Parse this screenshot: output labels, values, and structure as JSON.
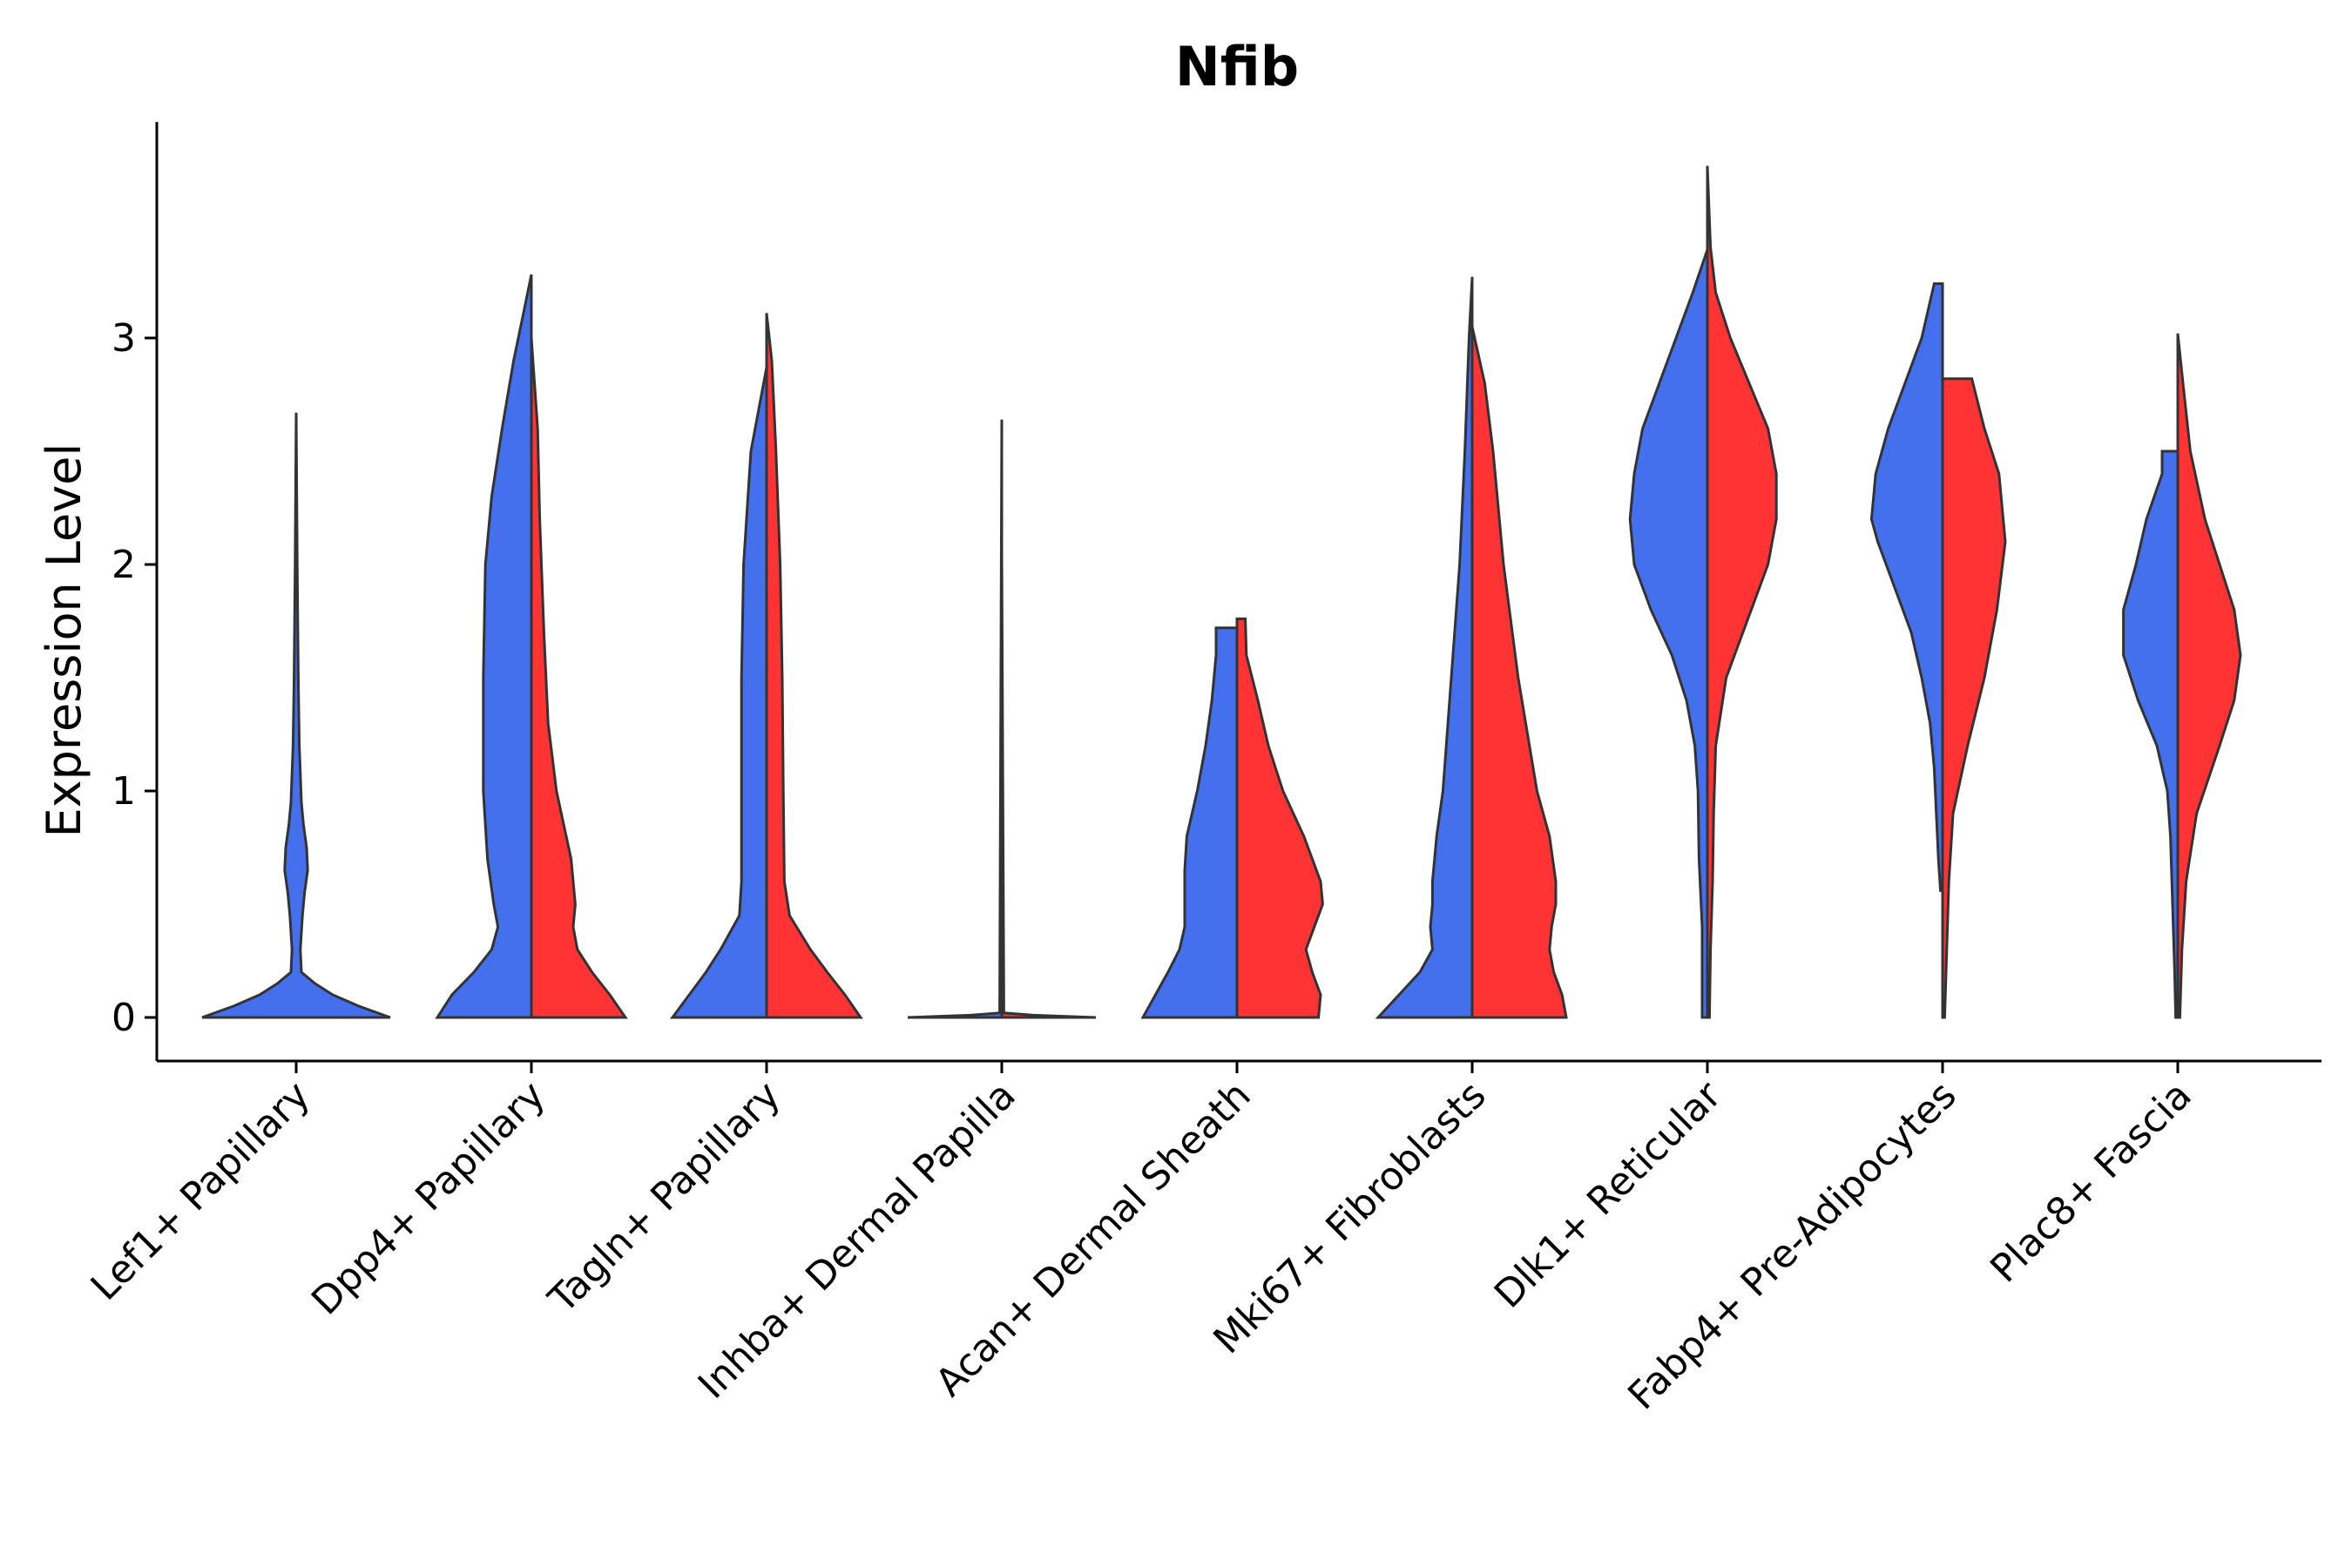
{
  "chart_data": {
    "type": "violin",
    "title": "Nfib",
    "xlabel": "",
    "ylabel": "Expression Level",
    "ylim": [
      -0.19,
      3.95
    ],
    "yticks": [
      0,
      1,
      2,
      3
    ],
    "categories": [
      "Lef1+ Papillary",
      "Dpp4+ Papillary",
      "Tagln+ Papillary",
      "Inhba+ Dermal Papilla",
      "Acan+ Dermal Sheath",
      "Mki67+ Fibroblasts",
      "Dlk1+ Reticular",
      "Fabp4+ Pre-Adipocytes",
      "Plac8+ Fascia"
    ],
    "split_colors": [
      "#4470ee",
      "#ff3333"
    ],
    "violins": [
      {
        "category": 0,
        "group": "single",
        "color": "#4470ee",
        "ymin": 0,
        "ymax": 2.67,
        "profile": [
          [
            0,
            0.9
          ],
          [
            0.05,
            0.6
          ],
          [
            0.1,
            0.35
          ],
          [
            0.15,
            0.18
          ],
          [
            0.2,
            0.05
          ],
          [
            0.3,
            0.04
          ],
          [
            0.45,
            0.06
          ],
          [
            0.55,
            0.08
          ],
          [
            0.65,
            0.11
          ],
          [
            0.75,
            0.1
          ],
          [
            0.85,
            0.07
          ],
          [
            0.95,
            0.05
          ],
          [
            1.2,
            0.03
          ],
          [
            1.5,
            0.02
          ],
          [
            2.0,
            0.01
          ],
          [
            2.67,
            0
          ]
        ]
      },
      {
        "category": 1,
        "group": "left",
        "color": "#4470ee",
        "ymin": 0,
        "ymax": 3.28,
        "profile": [
          [
            0,
            0.9
          ],
          [
            0.1,
            0.76
          ],
          [
            0.2,
            0.55
          ],
          [
            0.3,
            0.38
          ],
          [
            0.4,
            0.32
          ],
          [
            0.5,
            0.36
          ],
          [
            0.7,
            0.42
          ],
          [
            1.0,
            0.46
          ],
          [
            1.5,
            0.46
          ],
          [
            2.0,
            0.44
          ],
          [
            2.3,
            0.38
          ],
          [
            2.6,
            0.28
          ],
          [
            2.9,
            0.17
          ],
          [
            3.1,
            0.08
          ],
          [
            3.28,
            0
          ]
        ]
      },
      {
        "category": 1,
        "group": "right",
        "color": "#ff3333",
        "ymin": 0,
        "ymax": 3.0,
        "profile": [
          [
            0,
            0.9
          ],
          [
            0.1,
            0.75
          ],
          [
            0.2,
            0.58
          ],
          [
            0.3,
            0.44
          ],
          [
            0.4,
            0.4
          ],
          [
            0.5,
            0.42
          ],
          [
            0.7,
            0.38
          ],
          [
            1.0,
            0.24
          ],
          [
            1.3,
            0.16
          ],
          [
            1.7,
            0.12
          ],
          [
            2.2,
            0.08
          ],
          [
            2.6,
            0.06
          ],
          [
            3.0,
            0
          ]
        ]
      },
      {
        "category": 2,
        "group": "left",
        "color": "#4470ee",
        "ymin": 0,
        "ymax": 2.87,
        "profile": [
          [
            0,
            0.9
          ],
          [
            0.1,
            0.74
          ],
          [
            0.2,
            0.58
          ],
          [
            0.3,
            0.44
          ],
          [
            0.45,
            0.26
          ],
          [
            0.6,
            0.24
          ],
          [
            1.0,
            0.24
          ],
          [
            1.5,
            0.24
          ],
          [
            2.0,
            0.22
          ],
          [
            2.5,
            0.15
          ],
          [
            2.87,
            0
          ]
        ]
      },
      {
        "category": 2,
        "group": "right",
        "color": "#ff3333",
        "ymin": 0,
        "ymax": 3.11,
        "profile": [
          [
            0,
            0.9
          ],
          [
            0.1,
            0.75
          ],
          [
            0.2,
            0.58
          ],
          [
            0.3,
            0.42
          ],
          [
            0.45,
            0.22
          ],
          [
            0.6,
            0.17
          ],
          [
            1.0,
            0.16
          ],
          [
            1.5,
            0.15
          ],
          [
            2.0,
            0.13
          ],
          [
            2.5,
            0.09
          ],
          [
            2.9,
            0.05
          ],
          [
            3.11,
            0
          ]
        ]
      },
      {
        "category": 3,
        "group": "left",
        "color": "#4470ee",
        "ymin": 0,
        "ymax": 2.64,
        "profile": [
          [
            0,
            0.9
          ],
          [
            0.01,
            0.3
          ],
          [
            0.02,
            0.02
          ],
          [
            2.64,
            0
          ]
        ]
      },
      {
        "category": 3,
        "group": "right",
        "color": "#ff3333",
        "ymin": 0,
        "ymax": 2.05,
        "profile": [
          [
            0,
            0.9
          ],
          [
            0.01,
            0.3
          ],
          [
            0.02,
            0.02
          ],
          [
            2.05,
            0
          ]
        ]
      },
      {
        "category": 4,
        "group": "left",
        "color": "#4470ee",
        "ymin": 0,
        "ymax": 1.72,
        "profile": [
          [
            0,
            0.9
          ],
          [
            0.1,
            0.78
          ],
          [
            0.2,
            0.66
          ],
          [
            0.3,
            0.55
          ],
          [
            0.4,
            0.5
          ],
          [
            0.5,
            0.5
          ],
          [
            0.65,
            0.5
          ],
          [
            0.8,
            0.48
          ],
          [
            1.0,
            0.38
          ],
          [
            1.2,
            0.3
          ],
          [
            1.4,
            0.24
          ],
          [
            1.6,
            0.2
          ],
          [
            1.72,
            0.2
          ]
        ]
      },
      {
        "category": 4,
        "group": "right",
        "color": "#ff3333",
        "ymin": 0,
        "ymax": 1.76,
        "profile": [
          [
            0,
            0.78
          ],
          [
            0.1,
            0.8
          ],
          [
            0.2,
            0.72
          ],
          [
            0.3,
            0.66
          ],
          [
            0.4,
            0.74
          ],
          [
            0.5,
            0.82
          ],
          [
            0.6,
            0.8
          ],
          [
            0.8,
            0.64
          ],
          [
            1.0,
            0.44
          ],
          [
            1.2,
            0.3
          ],
          [
            1.4,
            0.2
          ],
          [
            1.6,
            0.09
          ],
          [
            1.76,
            0.08
          ]
        ]
      },
      {
        "category": 5,
        "group": "left",
        "color": "#4470ee",
        "ymin": 0,
        "ymax": 3.27,
        "profile": [
          [
            0,
            0.9
          ],
          [
            0.1,
            0.7
          ],
          [
            0.2,
            0.5
          ],
          [
            0.3,
            0.38
          ],
          [
            0.4,
            0.4
          ],
          [
            0.5,
            0.38
          ],
          [
            0.6,
            0.38
          ],
          [
            0.8,
            0.34
          ],
          [
            1.0,
            0.28
          ],
          [
            1.5,
            0.2
          ],
          [
            2.0,
            0.12
          ],
          [
            2.5,
            0.07
          ],
          [
            3.0,
            0.03
          ],
          [
            3.27,
            0
          ]
        ]
      },
      {
        "category": 5,
        "group": "right",
        "color": "#ff3333",
        "ymin": 0,
        "ymax": 3.05,
        "profile": [
          [
            0,
            0.9
          ],
          [
            0.1,
            0.86
          ],
          [
            0.2,
            0.78
          ],
          [
            0.3,
            0.74
          ],
          [
            0.4,
            0.76
          ],
          [
            0.5,
            0.8
          ],
          [
            0.6,
            0.8
          ],
          [
            0.8,
            0.74
          ],
          [
            1.0,
            0.62
          ],
          [
            1.5,
            0.44
          ],
          [
            2.0,
            0.3
          ],
          [
            2.5,
            0.2
          ],
          [
            2.8,
            0.12
          ],
          [
            3.05,
            0
          ]
        ]
      },
      {
        "category": 6,
        "group": "left",
        "color": "#4470ee",
        "ymin": 0,
        "ymax": 3.39,
        "profile": [
          [
            0,
            0.05
          ],
          [
            0.2,
            0.05
          ],
          [
            0.4,
            0.05
          ],
          [
            0.7,
            0.08
          ],
          [
            1.0,
            0.09
          ],
          [
            1.2,
            0.12
          ],
          [
            1.4,
            0.2
          ],
          [
            1.6,
            0.34
          ],
          [
            1.8,
            0.54
          ],
          [
            2.0,
            0.7
          ],
          [
            2.2,
            0.74
          ],
          [
            2.4,
            0.7
          ],
          [
            2.6,
            0.62
          ],
          [
            2.8,
            0.46
          ],
          [
            3.0,
            0.3
          ],
          [
            3.2,
            0.14
          ],
          [
            3.39,
            0
          ]
        ]
      },
      {
        "category": 6,
        "group": "right",
        "color": "#ff3333",
        "ymin": 0,
        "ymax": 3.76,
        "profile": [
          [
            0,
            0.02
          ],
          [
            0.3,
            0.03
          ],
          [
            0.6,
            0.05
          ],
          [
            0.9,
            0.06
          ],
          [
            1.2,
            0.08
          ],
          [
            1.5,
            0.18
          ],
          [
            1.8,
            0.42
          ],
          [
            2.0,
            0.58
          ],
          [
            2.2,
            0.66
          ],
          [
            2.4,
            0.66
          ],
          [
            2.6,
            0.58
          ],
          [
            2.8,
            0.4
          ],
          [
            3.0,
            0.22
          ],
          [
            3.2,
            0.08
          ],
          [
            3.4,
            0.03
          ],
          [
            3.76,
            0
          ]
        ]
      },
      {
        "category": 7,
        "group": "left",
        "color": "#4470ee",
        "ymin": 0.56,
        "ymax": 3.24,
        "profile": [
          [
            0.56,
            0.02
          ],
          [
            0.7,
            0.04
          ],
          [
            0.9,
            0.06
          ],
          [
            1.1,
            0.08
          ],
          [
            1.3,
            0.12
          ],
          [
            1.5,
            0.2
          ],
          [
            1.7,
            0.3
          ],
          [
            1.9,
            0.46
          ],
          [
            2.1,
            0.62
          ],
          [
            2.2,
            0.68
          ],
          [
            2.4,
            0.64
          ],
          [
            2.6,
            0.52
          ],
          [
            2.8,
            0.36
          ],
          [
            3.0,
            0.2
          ],
          [
            3.24,
            0.08
          ]
        ]
      },
      {
        "category": 7,
        "group": "right",
        "color": "#ff3333",
        "ymin": 0,
        "ymax": 2.82,
        "profile": [
          [
            0,
            0.02
          ],
          [
            0.3,
            0.04
          ],
          [
            0.6,
            0.06
          ],
          [
            0.9,
            0.1
          ],
          [
            1.2,
            0.24
          ],
          [
            1.5,
            0.4
          ],
          [
            1.8,
            0.52
          ],
          [
            2.1,
            0.6
          ],
          [
            2.4,
            0.54
          ],
          [
            2.6,
            0.4
          ],
          [
            2.82,
            0.28
          ]
        ]
      },
      {
        "category": 8,
        "group": "left",
        "color": "#4470ee",
        "ymin": 0,
        "ymax": 2.5,
        "profile": [
          [
            0,
            0.02
          ],
          [
            0.2,
            0.03
          ],
          [
            0.5,
            0.05
          ],
          [
            0.8,
            0.07
          ],
          [
            1.0,
            0.1
          ],
          [
            1.2,
            0.2
          ],
          [
            1.4,
            0.38
          ],
          [
            1.6,
            0.52
          ],
          [
            1.8,
            0.52
          ],
          [
            2.0,
            0.4
          ],
          [
            2.2,
            0.3
          ],
          [
            2.4,
            0.15
          ],
          [
            2.5,
            0.15
          ]
        ]
      },
      {
        "category": 8,
        "group": "right",
        "color": "#ff3333",
        "ymin": 0,
        "ymax": 3.02,
        "profile": [
          [
            0,
            0.02
          ],
          [
            0.3,
            0.04
          ],
          [
            0.6,
            0.08
          ],
          [
            0.9,
            0.18
          ],
          [
            1.2,
            0.4
          ],
          [
            1.4,
            0.54
          ],
          [
            1.6,
            0.6
          ],
          [
            1.8,
            0.54
          ],
          [
            2.0,
            0.4
          ],
          [
            2.2,
            0.26
          ],
          [
            2.5,
            0.12
          ],
          [
            2.8,
            0.05
          ],
          [
            3.02,
            0
          ]
        ]
      }
    ]
  }
}
